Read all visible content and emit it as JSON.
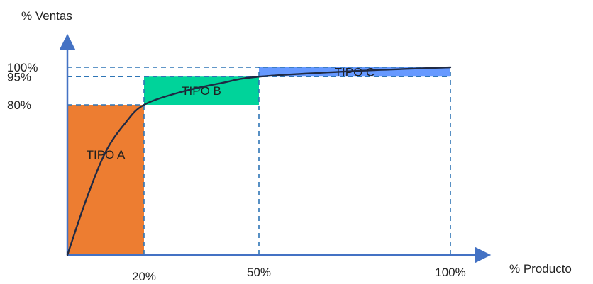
{
  "chart_data": {
    "type": "line",
    "title": "",
    "xlabel": "% Producto",
    "ylabel": "% Ventas",
    "xlim": [
      0,
      100
    ],
    "ylim": [
      0,
      100
    ],
    "x_ticks": [
      {
        "value": 20,
        "label": "20%"
      },
      {
        "value": 50,
        "label": "50%"
      },
      {
        "value": 100,
        "label": "100%"
      }
    ],
    "y_ticks": [
      {
        "value": 80,
        "label": "80%"
      },
      {
        "value": 95,
        "label": "95%"
      },
      {
        "value": 100,
        "label": "100%"
      }
    ],
    "zones": [
      {
        "label": "TIPO A",
        "x0": 0,
        "x1": 20,
        "y0": 0,
        "y1": 80,
        "color": "#ED7D31"
      },
      {
        "label": "TIPO B",
        "x0": 20,
        "x1": 50,
        "y0": 80,
        "y1": 95,
        "color": "#00D39A"
      },
      {
        "label": "TIPO C",
        "x0": 50,
        "x1": 100,
        "y0": 95,
        "y1": 100,
        "color": "#6699FF"
      }
    ],
    "series": [
      {
        "x": [
          0,
          5,
          10,
          15,
          20,
          30,
          40,
          50,
          75,
          100
        ],
        "y": [
          0,
          30,
          55,
          70,
          80,
          87,
          91.5,
          95,
          98,
          100
        ]
      }
    ],
    "colors": {
      "axis": "#4472C4",
      "guide": "#2E75B6",
      "curve": "#1F2A44"
    },
    "grid": false
  }
}
